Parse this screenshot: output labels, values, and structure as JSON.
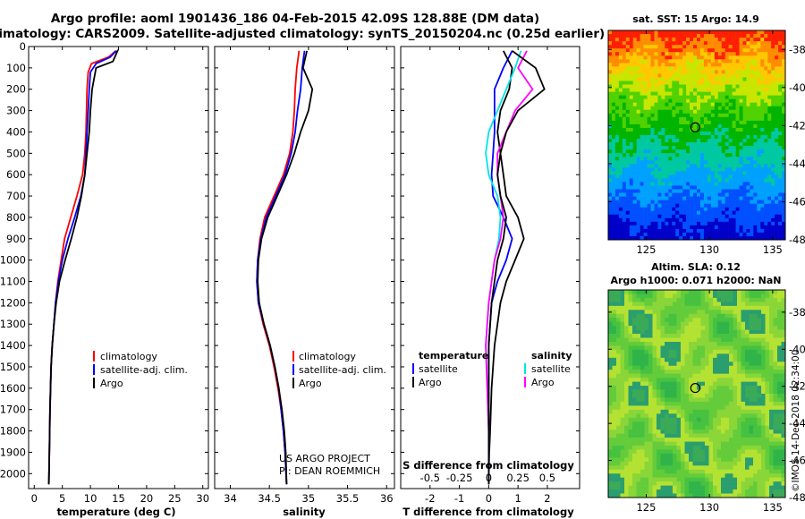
{
  "title_line1": "Argo profile: aoml 1901436_186 04-Feb-2015 42.09S 128.88E (DM data)",
  "title_line2": "Climatology: CARS2009. Satellite-adjusted climatology: synTS_20150204.nc (0.25d earlier)",
  "panel1": {
    "xlabel": "temperature (deg C)",
    "legend": [
      "climatology",
      "satellite-adj. clim.",
      "Argo"
    ]
  },
  "panel2": {
    "xlabel": "salinity",
    "legend": [
      "climatology",
      "satellite-adj. clim.",
      "Argo"
    ],
    "note_line1": "US ARGO PROJECT",
    "note_line2": "PI: DEAN ROEMMICH"
  },
  "panel3": {
    "xlabel": "T difference from climatology",
    "xlabel2": "S difference from climatology",
    "legend_left_title": "temperature",
    "legend_right_title": "salinity",
    "legend_left": [
      "satellite",
      "Argo"
    ],
    "legend_right": [
      "satellite",
      "Argo"
    ]
  },
  "map1": {
    "title": "sat. SST: 15 Argo: 14.9"
  },
  "map2": {
    "title_line1": "Altim. SLA: 0.12",
    "title_line2": "Argo h1000: 0.071 h2000: NaN"
  },
  "credit": "©IMOS 14-Dec-2018 02:34:00",
  "colors": {
    "climatology": "#ff0000",
    "satellite": "#0000ff",
    "argo": "#000000",
    "sat_salinity": "#00e5e5",
    "argo_salinity": "#ff00ff"
  },
  "chart_data": [
    {
      "type": "line",
      "name": "temperature profile",
      "xlabel": "temperature (deg C)",
      "ylabel": "",
      "xlim": [
        -1,
        31
      ],
      "ylim": [
        2070,
        0
      ],
      "xticks": [
        0,
        5,
        10,
        15,
        20,
        25,
        30
      ],
      "yticks": [
        0,
        100,
        200,
        300,
        400,
        500,
        600,
        700,
        800,
        900,
        1000,
        1100,
        1200,
        1300,
        1400,
        1500,
        1600,
        1700,
        1800,
        1900,
        2000
      ],
      "yticklabels": [
        "0",
        "100",
        "200",
        "300",
        "400",
        "500",
        "600",
        "700",
        "800",
        "900",
        "1000",
        "1100",
        "1200",
        "1300",
        "1400",
        "1500",
        "1600",
        "1700",
        "1800",
        "1900",
        "2000"
      ],
      "legend_position": "lower-right",
      "series": [
        {
          "name": "climatology",
          "color": "#ff0000",
          "x": [
            14.5,
            13.2,
            10.2,
            9.6,
            9.4,
            9.3,
            9.2,
            9.0,
            8.6,
            7.6,
            6.5,
            5.4,
            4.8,
            4.2,
            3.8,
            3.5,
            3.2,
            3.0,
            2.9,
            2.8,
            2.7,
            2.6
          ],
          "y": [
            20,
            50,
            80,
            120,
            200,
            300,
            400,
            500,
            600,
            700,
            800,
            900,
            1000,
            1100,
            1200,
            1300,
            1400,
            1500,
            1600,
            1700,
            1900,
            2050
          ]
        },
        {
          "name": "satellite-adj. clim.",
          "color": "#0000ff",
          "x": [
            14.6,
            13.5,
            11.0,
            10.0,
            9.8,
            9.6,
            9.4,
            9.2,
            9.0,
            8.3,
            7.2,
            6.0,
            5.0,
            4.3,
            3.8,
            3.5,
            3.2,
            3.0,
            2.9,
            2.8,
            2.7,
            2.6
          ],
          "y": [
            20,
            50,
            80,
            120,
            200,
            300,
            400,
            500,
            600,
            700,
            800,
            900,
            1000,
            1100,
            1200,
            1300,
            1400,
            1500,
            1600,
            1700,
            1900,
            2050
          ]
        },
        {
          "name": "Argo",
          "color": "#000000",
          "x": [
            14.9,
            14.5,
            14.0,
            11.0,
            10.3,
            10.0,
            9.8,
            9.4,
            9.0,
            8.4,
            7.6,
            6.6,
            5.5,
            4.5,
            3.9,
            3.5,
            3.2,
            3.0,
            2.9,
            2.8,
            2.7,
            2.6
          ],
          "y": [
            15,
            40,
            70,
            100,
            200,
            300,
            400,
            500,
            600,
            700,
            800,
            900,
            1000,
            1100,
            1200,
            1300,
            1400,
            1500,
            1600,
            1700,
            1900,
            2050
          ]
        }
      ]
    },
    {
      "type": "line",
      "name": "salinity profile",
      "xlabel": "salinity",
      "xlim": [
        33.8,
        36.1
      ],
      "ylim": [
        2070,
        0
      ],
      "xticks": [
        34,
        34.5,
        35,
        35.5,
        36
      ],
      "xticklabels": [
        "34",
        "34.5",
        "35",
        "35.5",
        "36"
      ],
      "legend_position": "lower-right",
      "series": [
        {
          "name": "climatology",
          "color": "#ff0000",
          "x": [
            34.88,
            34.85,
            34.83,
            34.82,
            34.8,
            34.76,
            34.68,
            34.56,
            34.44,
            34.38,
            34.35,
            34.34,
            34.36,
            34.42,
            34.5,
            34.56,
            34.61,
            34.65,
            34.68,
            34.7,
            34.72
          ],
          "y": [
            20,
            100,
            200,
            300,
            400,
            500,
            600,
            700,
            800,
            900,
            1000,
            1100,
            1200,
            1300,
            1400,
            1500,
            1600,
            1700,
            1800,
            1900,
            2050
          ]
        },
        {
          "name": "satellite-adj. clim.",
          "color": "#0000ff",
          "x": [
            34.95,
            34.92,
            34.9,
            34.86,
            34.83,
            34.78,
            34.7,
            34.58,
            34.46,
            34.39,
            34.35,
            34.34,
            34.36,
            34.43,
            34.51,
            34.57,
            34.62,
            34.65,
            34.68,
            34.7,
            34.72
          ],
          "y": [
            20,
            100,
            200,
            300,
            400,
            500,
            600,
            700,
            800,
            900,
            1000,
            1100,
            1200,
            1300,
            1400,
            1500,
            1600,
            1700,
            1800,
            1900,
            2050
          ]
        },
        {
          "name": "Argo",
          "color": "#000000",
          "x": [
            34.98,
            34.93,
            35.05,
            35.0,
            34.9,
            34.82,
            34.72,
            34.6,
            34.48,
            34.4,
            34.36,
            34.35,
            34.37,
            34.43,
            34.51,
            34.57,
            34.62,
            34.66,
            34.69,
            34.71,
            34.72
          ],
          "y": [
            20,
            100,
            200,
            300,
            400,
            500,
            600,
            700,
            800,
            900,
            1000,
            1100,
            1200,
            1300,
            1400,
            1500,
            1600,
            1700,
            1800,
            1900,
            2050
          ]
        }
      ]
    },
    {
      "type": "line",
      "name": "difference from climatology",
      "xlabel": "T difference from climatology",
      "xlabel2": "S difference from climatology",
      "xlim": [
        -3,
        3.1
      ],
      "ylim": [
        2070,
        0
      ],
      "xticks": [
        -2,
        -1,
        0,
        1,
        2
      ],
      "xticks2": [
        -0.5,
        -0.25,
        0,
        0.25,
        0.5
      ],
      "xticklabels2": [
        "-0.5",
        "-0.25",
        "0",
        "0.25",
        "0.5"
      ],
      "series": [
        {
          "name": "temperature satellite",
          "color": "#0000ff",
          "x": [
            0.8,
            0.5,
            0.2,
            0.2,
            0.2,
            0.15,
            0.1,
            0.15,
            0.5,
            0.8,
            0.6,
            0.3,
            0.1,
            0.05,
            0.0,
            0.0,
            0.0,
            0.0,
            0.0
          ],
          "y": [
            20,
            100,
            200,
            300,
            400,
            500,
            600,
            700,
            800,
            900,
            1000,
            1100,
            1200,
            1300,
            1400,
            1600,
            1800,
            1900,
            2050
          ]
        },
        {
          "name": "temperature Argo",
          "color": "#000000",
          "x": [
            0.5,
            0.8,
            0.7,
            0.4,
            0.3,
            0.4,
            0.5,
            0.6,
            1.0,
            1.2,
            0.9,
            0.6,
            0.4,
            0.3,
            0.2,
            0.1,
            0.05,
            0.02,
            0.0
          ],
          "y": [
            20,
            100,
            200,
            300,
            400,
            500,
            600,
            700,
            800,
            900,
            1000,
            1100,
            1200,
            1300,
            1400,
            1600,
            1800,
            1900,
            2050
          ]
        },
        {
          "name": "salinity satellite",
          "color": "#00e5e5",
          "x": [
            1.1,
            0.9,
            0.6,
            0.3,
            0.0,
            -0.1,
            0.0,
            0.3,
            0.4,
            0.35,
            0.2,
            0.1,
            0.0,
            -0.05,
            -0.1,
            -0.05,
            0.0,
            0.0,
            0.0
          ],
          "y": [
            20,
            100,
            200,
            300,
            400,
            500,
            600,
            700,
            800,
            900,
            1000,
            1100,
            1200,
            1300,
            1400,
            1600,
            1800,
            1900,
            2050
          ]
        },
        {
          "name": "salinity Argo",
          "color": "#ff00ff",
          "x": [
            1.3,
            1.0,
            1.5,
            0.9,
            0.6,
            0.3,
            0.3,
            0.4,
            0.5,
            0.4,
            0.2,
            0.1,
            0.0,
            -0.05,
            -0.1,
            -0.05,
            0.0,
            0.0,
            0.0
          ],
          "y": [
            20,
            100,
            200,
            300,
            400,
            500,
            600,
            700,
            800,
            900,
            1000,
            1100,
            1200,
            1300,
            1400,
            1600,
            1800,
            1900,
            2050
          ]
        },
        {
          "name": "salinity Argo (black)",
          "color": "#000000",
          "x": [
            0.8,
            1.6,
            1.9,
            1.0,
            0.6,
            0.4,
            0.3,
            0.4,
            0.6,
            0.5,
            0.3,
            0.2,
            0.1,
            0.05,
            0.0,
            0.0,
            0.0,
            0.0,
            0.0
          ],
          "y": [
            20,
            100,
            200,
            300,
            400,
            500,
            600,
            700,
            800,
            900,
            1000,
            1100,
            1200,
            1300,
            1400,
            1600,
            1800,
            1900,
            2050
          ]
        }
      ]
    },
    {
      "type": "heatmap",
      "name": "SST map",
      "title": "sat. SST: 15 Argo: 14.9",
      "xlim": [
        122,
        136
      ],
      "ylim": [
        -48,
        -37
      ],
      "xticks": [
        125,
        130,
        135
      ],
      "yticks": [
        -38,
        -40,
        -42,
        -44,
        -46,
        -48
      ],
      "argo_position": {
        "lon": 128.88,
        "lat": -42.09
      }
    },
    {
      "type": "heatmap",
      "name": "SLA map",
      "title_line1": "Altim. SLA: 0.12",
      "title_line2": "Argo h1000: 0.071 h2000: NaN",
      "xlim": [
        122,
        136
      ],
      "ylim": [
        -48,
        -36.8
      ],
      "xticks": [
        125,
        130,
        135
      ],
      "yticks": [
        -38,
        -40,
        -42,
        -44,
        -46,
        -48
      ],
      "argo_position": {
        "lon": 128.88,
        "lat": -42.09
      }
    }
  ]
}
